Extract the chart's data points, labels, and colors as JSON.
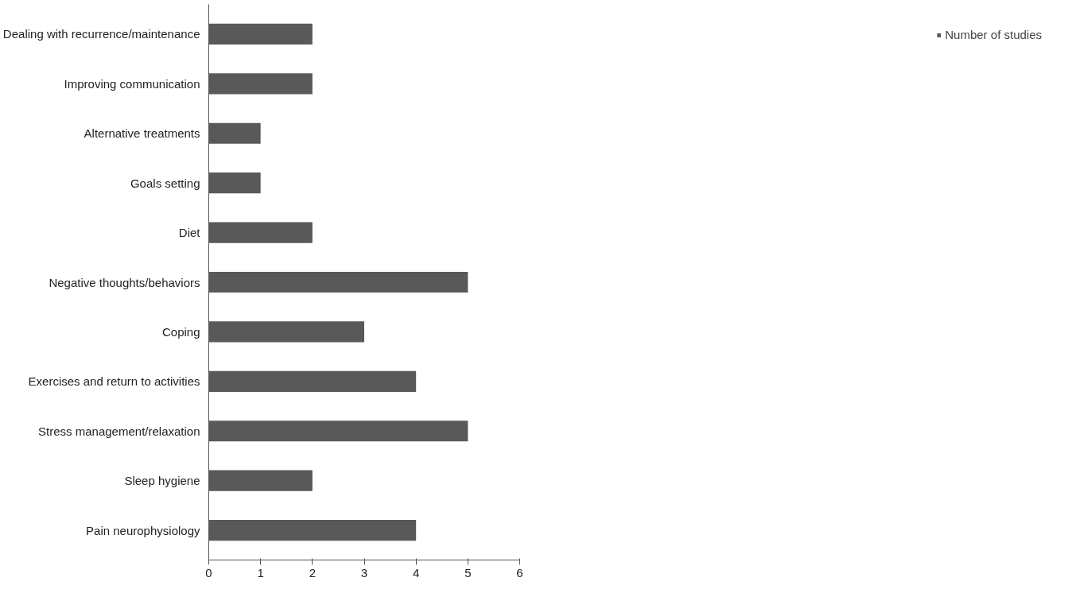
{
  "chart_data": {
    "type": "bar",
    "orientation": "horizontal",
    "categories": [
      "Dealing with recurrence/maintenance",
      "Improving communication",
      "Alternative treatments",
      "Goals setting",
      "Diet",
      "Negative thoughts/behaviors",
      "Coping",
      "Exercises and return to activities",
      "Stress management/relaxation",
      "Sleep hygiene",
      "Pain neurophysiology"
    ],
    "series": [
      {
        "name": "Number of studies",
        "color": "#595959",
        "values": [
          2,
          2,
          1,
          1,
          2,
          5,
          3,
          4,
          5,
          2,
          4
        ]
      }
    ],
    "xlim": [
      0,
      6
    ],
    "xticks": [
      0,
      1,
      2,
      3,
      4,
      5,
      6
    ],
    "grid": false,
    "legend": "right"
  }
}
